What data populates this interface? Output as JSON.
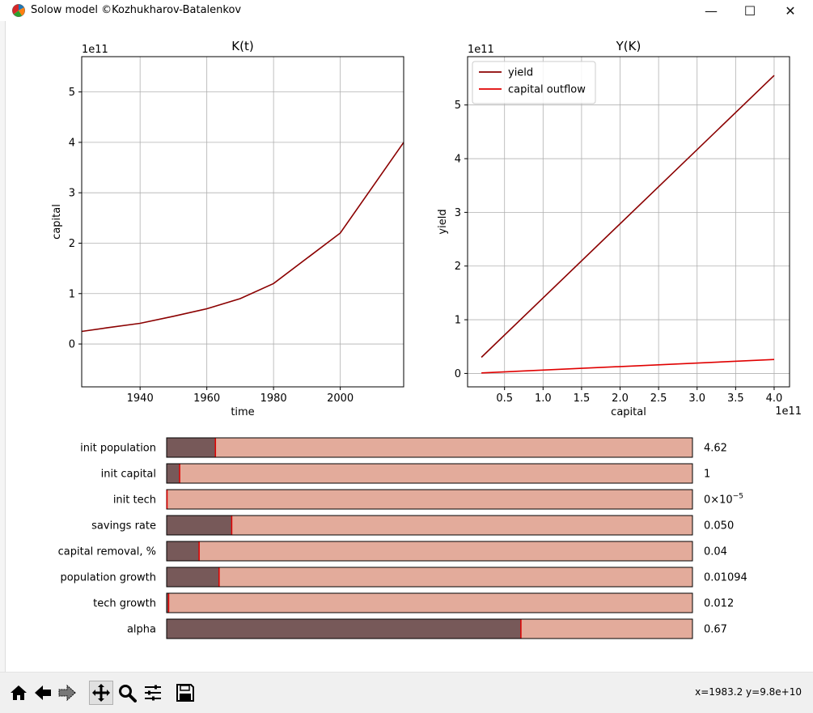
{
  "window": {
    "title": "Solow model ©Kozhukharov-Batalenkov",
    "minimize_glyph": "—",
    "maximize_glyph": "☐",
    "close_glyph": "✕"
  },
  "chart_data": [
    {
      "type": "line",
      "title": "K(t)",
      "xlabel": "time",
      "ylabel": "capital",
      "offset_label": "1e11",
      "xlim": [
        1922.5,
        2019
      ],
      "ylim": [
        -0.85,
        5.7
      ],
      "xticks": [
        1940,
        1960,
        1980,
        2000
      ],
      "yticks": [
        0,
        1,
        2,
        3,
        4,
        5
      ],
      "grid": true,
      "series": [
        {
          "color": "#8b0000",
          "x": [
            1922.5,
            1930,
            1940,
            1950,
            1960,
            1970,
            1980,
            2000,
            2019
          ],
          "y": [
            0.25,
            0.32,
            0.41,
            0.55,
            0.7,
            0.9,
            1.2,
            2.2,
            4.0
          ]
        }
      ]
    },
    {
      "type": "line",
      "title": "Y(K)",
      "xlabel": "capital",
      "ylabel": "yield",
      "offset_label": "1e11",
      "x_offset_label": "1e11",
      "xlim": [
        0.02,
        4.2
      ],
      "ylim": [
        -0.25,
        5.9
      ],
      "xticks": [
        0.5,
        1.0,
        1.5,
        2.0,
        2.5,
        3.0,
        3.5,
        4.0
      ],
      "xtick_labels": [
        "0.5",
        "1.0",
        "1.5",
        "2.0",
        "2.5",
        "3.0",
        "3.5",
        "4.0"
      ],
      "yticks": [
        0,
        1,
        2,
        3,
        4,
        5
      ],
      "grid": true,
      "legend_position": "top-left",
      "series": [
        {
          "name": "yield",
          "color": "#8b0000",
          "x": [
            0.2,
            4.0
          ],
          "y": [
            0.3,
            5.55
          ]
        },
        {
          "name": "capital outflow",
          "color": "#e00000",
          "x": [
            0.2,
            4.0
          ],
          "y": [
            0.01,
            0.26
          ]
        }
      ]
    }
  ],
  "sliders": [
    {
      "label": "init population",
      "fraction": 0.092,
      "value_text": "4.62"
    },
    {
      "label": "init capital",
      "fraction": 0.024,
      "value_text": "1"
    },
    {
      "label": "init tech",
      "fraction": 0.0,
      "value_text": "0×10",
      "value_sup": "−5"
    },
    {
      "label": "savings rate",
      "fraction": 0.123,
      "value_text": "0.050"
    },
    {
      "label": "capital removal, %",
      "fraction": 0.061,
      "value_text": "0.04"
    },
    {
      "label": "population growth",
      "fraction": 0.099,
      "value_text": "0.01094"
    },
    {
      "label": "tech growth",
      "fraction": 0.003,
      "value_text": "0.012"
    },
    {
      "label": "alpha",
      "fraction": 0.673,
      "value_text": "0.67"
    }
  ],
  "slider_colors": {
    "track": "#e3ab9b",
    "fill": "#775959",
    "handle": "#e00000"
  },
  "toolbar": {
    "icons": [
      "home-icon",
      "back-arrow-icon",
      "forward-arrow-icon",
      "pan-icon",
      "zoom-icon",
      "configure-subplots-icon",
      "save-icon"
    ],
    "coordinates": "x=1983.2 y=9.8e+10"
  }
}
